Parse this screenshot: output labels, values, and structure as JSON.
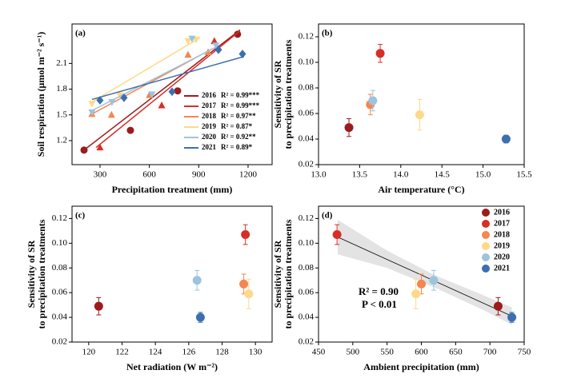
{
  "chart_data": [
    {
      "type": "scatter-fit",
      "panel_label": "(a)",
      "xlabel": "Precipitation treatment (mm)",
      "ylabel": "Soil respiration (μmol m⁻² s⁻¹)",
      "xlim": [
        130,
        1346
      ],
      "ylim": [
        0.92,
        2.56
      ],
      "xticks": [
        300,
        600,
        900,
        1200
      ],
      "yticks": [
        1.2,
        1.5,
        1.8,
        2.1
      ],
      "series": [
        {
          "name": "2016",
          "r2_label": "R² = 0.99***",
          "color": "#9b1c1c",
          "marker": "circle",
          "x": [
            203,
            485,
            772,
            1136
          ],
          "values": [
            1.09,
            1.32,
            1.78,
            2.44
          ],
          "fit_x": [
            203,
            1151
          ],
          "fit_y": [
            1.09,
            2.49
          ]
        },
        {
          "name": "2017",
          "r2_label": "R² = 0.99***",
          "color": "#d62f27",
          "marker": "triangle",
          "x": [
            300,
            675,
            995
          ],
          "values": [
            1.12,
            1.61,
            2.36
          ],
          "fit_x": [
            276,
            1151
          ],
          "fit_y": [
            1.12,
            2.48
          ]
        },
        {
          "name": "2018",
          "r2_label": "R² = 0.97**",
          "color": "#f4864f",
          "marker": "triangle",
          "x": [
            251,
            370,
            600,
            835,
            957
          ],
          "values": [
            1.51,
            1.5,
            1.73,
            2.2,
            2.23
          ],
          "fit_x": [
            251,
            981
          ],
          "fit_y": [
            1.51,
            2.27
          ]
        },
        {
          "name": "2019",
          "r2_label": "R² = 0.87*",
          "color": "#fdd98a",
          "marker": "triangle-down",
          "x": [
            251,
            421,
            835,
            884
          ],
          "values": [
            1.63,
            1.73,
            2.36,
            2.38
          ],
          "fit_x": [
            251,
            908
          ],
          "fit_y": [
            1.65,
            2.4
          ]
        },
        {
          "name": "2020",
          "r2_label": "R² = 0.92**",
          "color": "#9cc3df",
          "marker": "triangle-down",
          "x": [
            251,
            373,
            616,
            859,
            1005
          ],
          "values": [
            1.53,
            1.65,
            1.74,
            2.39,
            2.31
          ],
          "fit_x": [
            251,
            1005
          ],
          "fit_y": [
            1.55,
            2.29
          ]
        },
        {
          "name": "2021",
          "r2_label": "R² = 0.89*",
          "color": "#3b6fb0",
          "marker": "diamond",
          "x": [
            300,
            446,
            738,
            1020,
            1166
          ],
          "values": [
            1.67,
            1.7,
            1.77,
            2.26,
            2.21
          ],
          "fit_x": [
            251,
            1175
          ],
          "fit_y": [
            1.68,
            2.18
          ]
        }
      ]
    },
    {
      "type": "errorbar",
      "panel_label": "(b)",
      "xlabel": "Air temperature (°C)",
      "ylabel": [
        "Sensitivity of SR",
        "to precipitation treatments"
      ],
      "xlim": [
        13,
        15.5
      ],
      "ylim": [
        0.02,
        0.13
      ],
      "xticks": [
        {
          "value": 13,
          "label": "13.0"
        },
        13.5,
        {
          "value": 14,
          "label": "14.0"
        },
        14.5,
        {
          "value": 15,
          "label": "15.0"
        },
        15.5
      ],
      "yticks": [
        0.02,
        0.04,
        0.06,
        0.08,
        {
          "value": 0.1,
          "label": "0.10"
        },
        0.12
      ],
      "colors": [
        "#9b1c1c",
        "#d62f27",
        "#f4864f",
        "#fdd98a",
        "#9cc3df",
        "#3b6fb0"
      ],
      "x": [
        13.37,
        13.75,
        13.63,
        14.23,
        13.66,
        15.28
      ],
      "values": [
        0.049,
        0.107,
        0.067,
        0.059,
        0.07,
        0.04
      ],
      "errors": [
        0.007,
        0.007,
        0.008,
        0.012,
        0.008,
        0.003
      ]
    },
    {
      "type": "errorbar",
      "panel_label": "(c)",
      "xlabel": "Net radiation (W m⁻²)",
      "ylabel": [
        "Sensitivity of SR",
        "to precipitation treatments"
      ],
      "xlim": [
        119,
        131
      ],
      "ylim": [
        0.02,
        0.13
      ],
      "xticks": [
        120,
        122,
        124,
        126,
        128,
        130
      ],
      "yticks": [
        0.02,
        0.04,
        0.06,
        0.08,
        {
          "value": 0.1,
          "label": "0.10"
        },
        0.12
      ],
      "colors": [
        "#9b1c1c",
        "#d62f27",
        "#f4864f",
        "#fdd98a",
        "#9cc3df",
        "#3b6fb0"
      ],
      "x": [
        120.6,
        129.4,
        129.3,
        129.6,
        126.5,
        126.7
      ],
      "values": [
        0.049,
        0.107,
        0.067,
        0.059,
        0.07,
        0.04
      ],
      "errors": [
        0.007,
        0.008,
        0.008,
        0.012,
        0.008,
        0.004
      ]
    },
    {
      "type": "errorbar",
      "panel_label": "(d)",
      "xlabel": "Ambient precipitation (mm)",
      "ylabel": [
        "Sensitivity of SR",
        "to precipitation treatments"
      ],
      "xlim": [
        450,
        750
      ],
      "ylim": [
        0.02,
        0.13
      ],
      "xticks": [
        450,
        500,
        550,
        600,
        650,
        700,
        750
      ],
      "yticks": [
        0.02,
        0.04,
        0.06,
        0.08,
        {
          "value": 0.1,
          "label": "0.10"
        },
        0.12
      ],
      "colors": [
        "#9b1c1c",
        "#d62f27",
        "#f4864f",
        "#fdd98a",
        "#9cc3df",
        "#3b6fb0"
      ],
      "legend": [
        "2016",
        "2017",
        "2018",
        "2019",
        "2020",
        "2021"
      ],
      "x": [
        712,
        477,
        600,
        592,
        618,
        732
      ],
      "values": [
        0.049,
        0.107,
        0.067,
        0.059,
        0.07,
        0.04
      ],
      "errors": [
        0.007,
        0.008,
        0.008,
        0.012,
        0.008,
        0.004
      ],
      "fit_x": [
        478,
        732
      ],
      "fit_y": [
        0.105,
        0.041
      ],
      "ci_x": [
        478,
        550,
        620,
        690,
        732
      ],
      "ci_upper": [
        0.119,
        0.094,
        0.074,
        0.058,
        0.048
      ],
      "ci_lower": [
        0.091,
        0.08,
        0.064,
        0.046,
        0.034
      ],
      "annotations": [
        "R² = 0.90",
        "P < 0.01"
      ]
    }
  ]
}
